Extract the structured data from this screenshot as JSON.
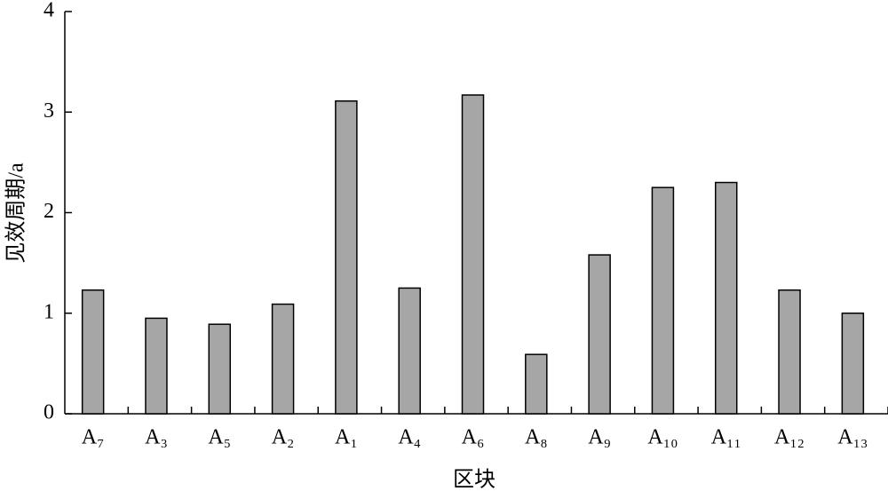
{
  "chart_data": {
    "type": "bar",
    "x_label": "区块",
    "y_label": "见效周期/a",
    "categories": [
      "A₇",
      "A₃",
      "A₅",
      "A₂",
      "A₁",
      "A₄",
      "A₆",
      "A₈",
      "A₉",
      "A₁₀",
      "A₁₁",
      "A₁₂",
      "A₁₃"
    ],
    "values": [
      1.23,
      0.95,
      0.89,
      1.09,
      3.11,
      1.25,
      3.17,
      0.59,
      1.58,
      2.25,
      2.3,
      1.23,
      1.0
    ],
    "color": "#a6a6a6",
    "ylim": [
      0,
      4
    ],
    "yticks": [
      0,
      1,
      2,
      3,
      4
    ],
    "grid": false
  }
}
